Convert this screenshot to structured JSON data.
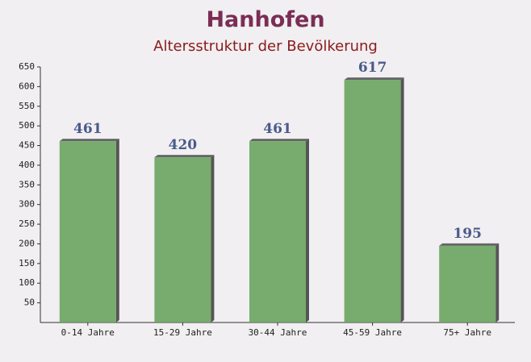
{
  "chart_data": {
    "type": "bar",
    "title": "Hanhofen",
    "subtitle": "Altersstruktur der Bevölkerung",
    "categories": [
      "0-14 Jahre",
      "15-29 Jahre",
      "30-44 Jahre",
      "45-59 Jahre",
      "75+ Jahre"
    ],
    "values": [
      461,
      420,
      461,
      617,
      195
    ],
    "color": "#6aa35f",
    "ylim": [
      0,
      650
    ],
    "yticks": [
      50,
      100,
      150,
      200,
      250,
      300,
      350,
      400,
      450,
      500,
      550,
      600,
      650
    ],
    "grid": false
  }
}
